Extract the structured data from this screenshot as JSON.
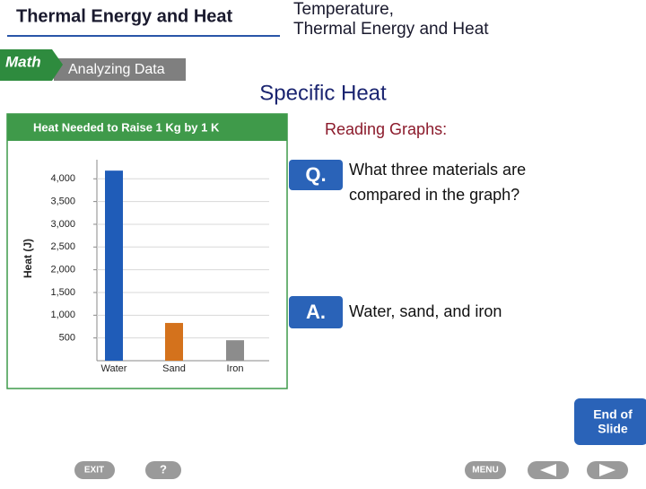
{
  "header": {
    "section": "Thermal Energy and Heat",
    "chapter": [
      "Temperature,",
      "Thermal Energy and Heat"
    ]
  },
  "badge": {
    "subject": "Math",
    "topic": "Analyzing Data"
  },
  "title": "Specific Heat",
  "prompt": "Reading Graphs:",
  "question": {
    "marker": "Q.",
    "lines": [
      "What three materials are",
      "compared in the graph?"
    ]
  },
  "answer": {
    "marker": "A.",
    "text": "Water, sand, and iron"
  },
  "end_button": [
    "End of",
    "Slide"
  ],
  "nav": {
    "exit": "EXIT",
    "help": "?",
    "menu": "MENU"
  },
  "chart_data": {
    "type": "bar",
    "title": "Heat Needed to Raise 1 Kg by 1 K",
    "y_label": "Heat (J)",
    "categories": [
      "Water",
      "Sand",
      "Iron"
    ],
    "values": [
      4180,
      830,
      450
    ],
    "colors": [
      "#1f5cb8",
      "#d4721c",
      "#8c8c8c"
    ],
    "ylim": [
      0,
      4420
    ],
    "yticks": [
      500,
      {
        "value": 1000,
        "label": "1,000"
      },
      {
        "value": 1500,
        "label": "1,500"
      },
      {
        "value": 2000,
        "label": "2,000"
      },
      {
        "value": 2500,
        "label": "2,500"
      },
      {
        "value": 3000,
        "label": "3,000"
      },
      {
        "value": 3500,
        "label": "3,500"
      },
      {
        "value": 4000,
        "label": "4,000"
      }
    ],
    "grid": true
  }
}
